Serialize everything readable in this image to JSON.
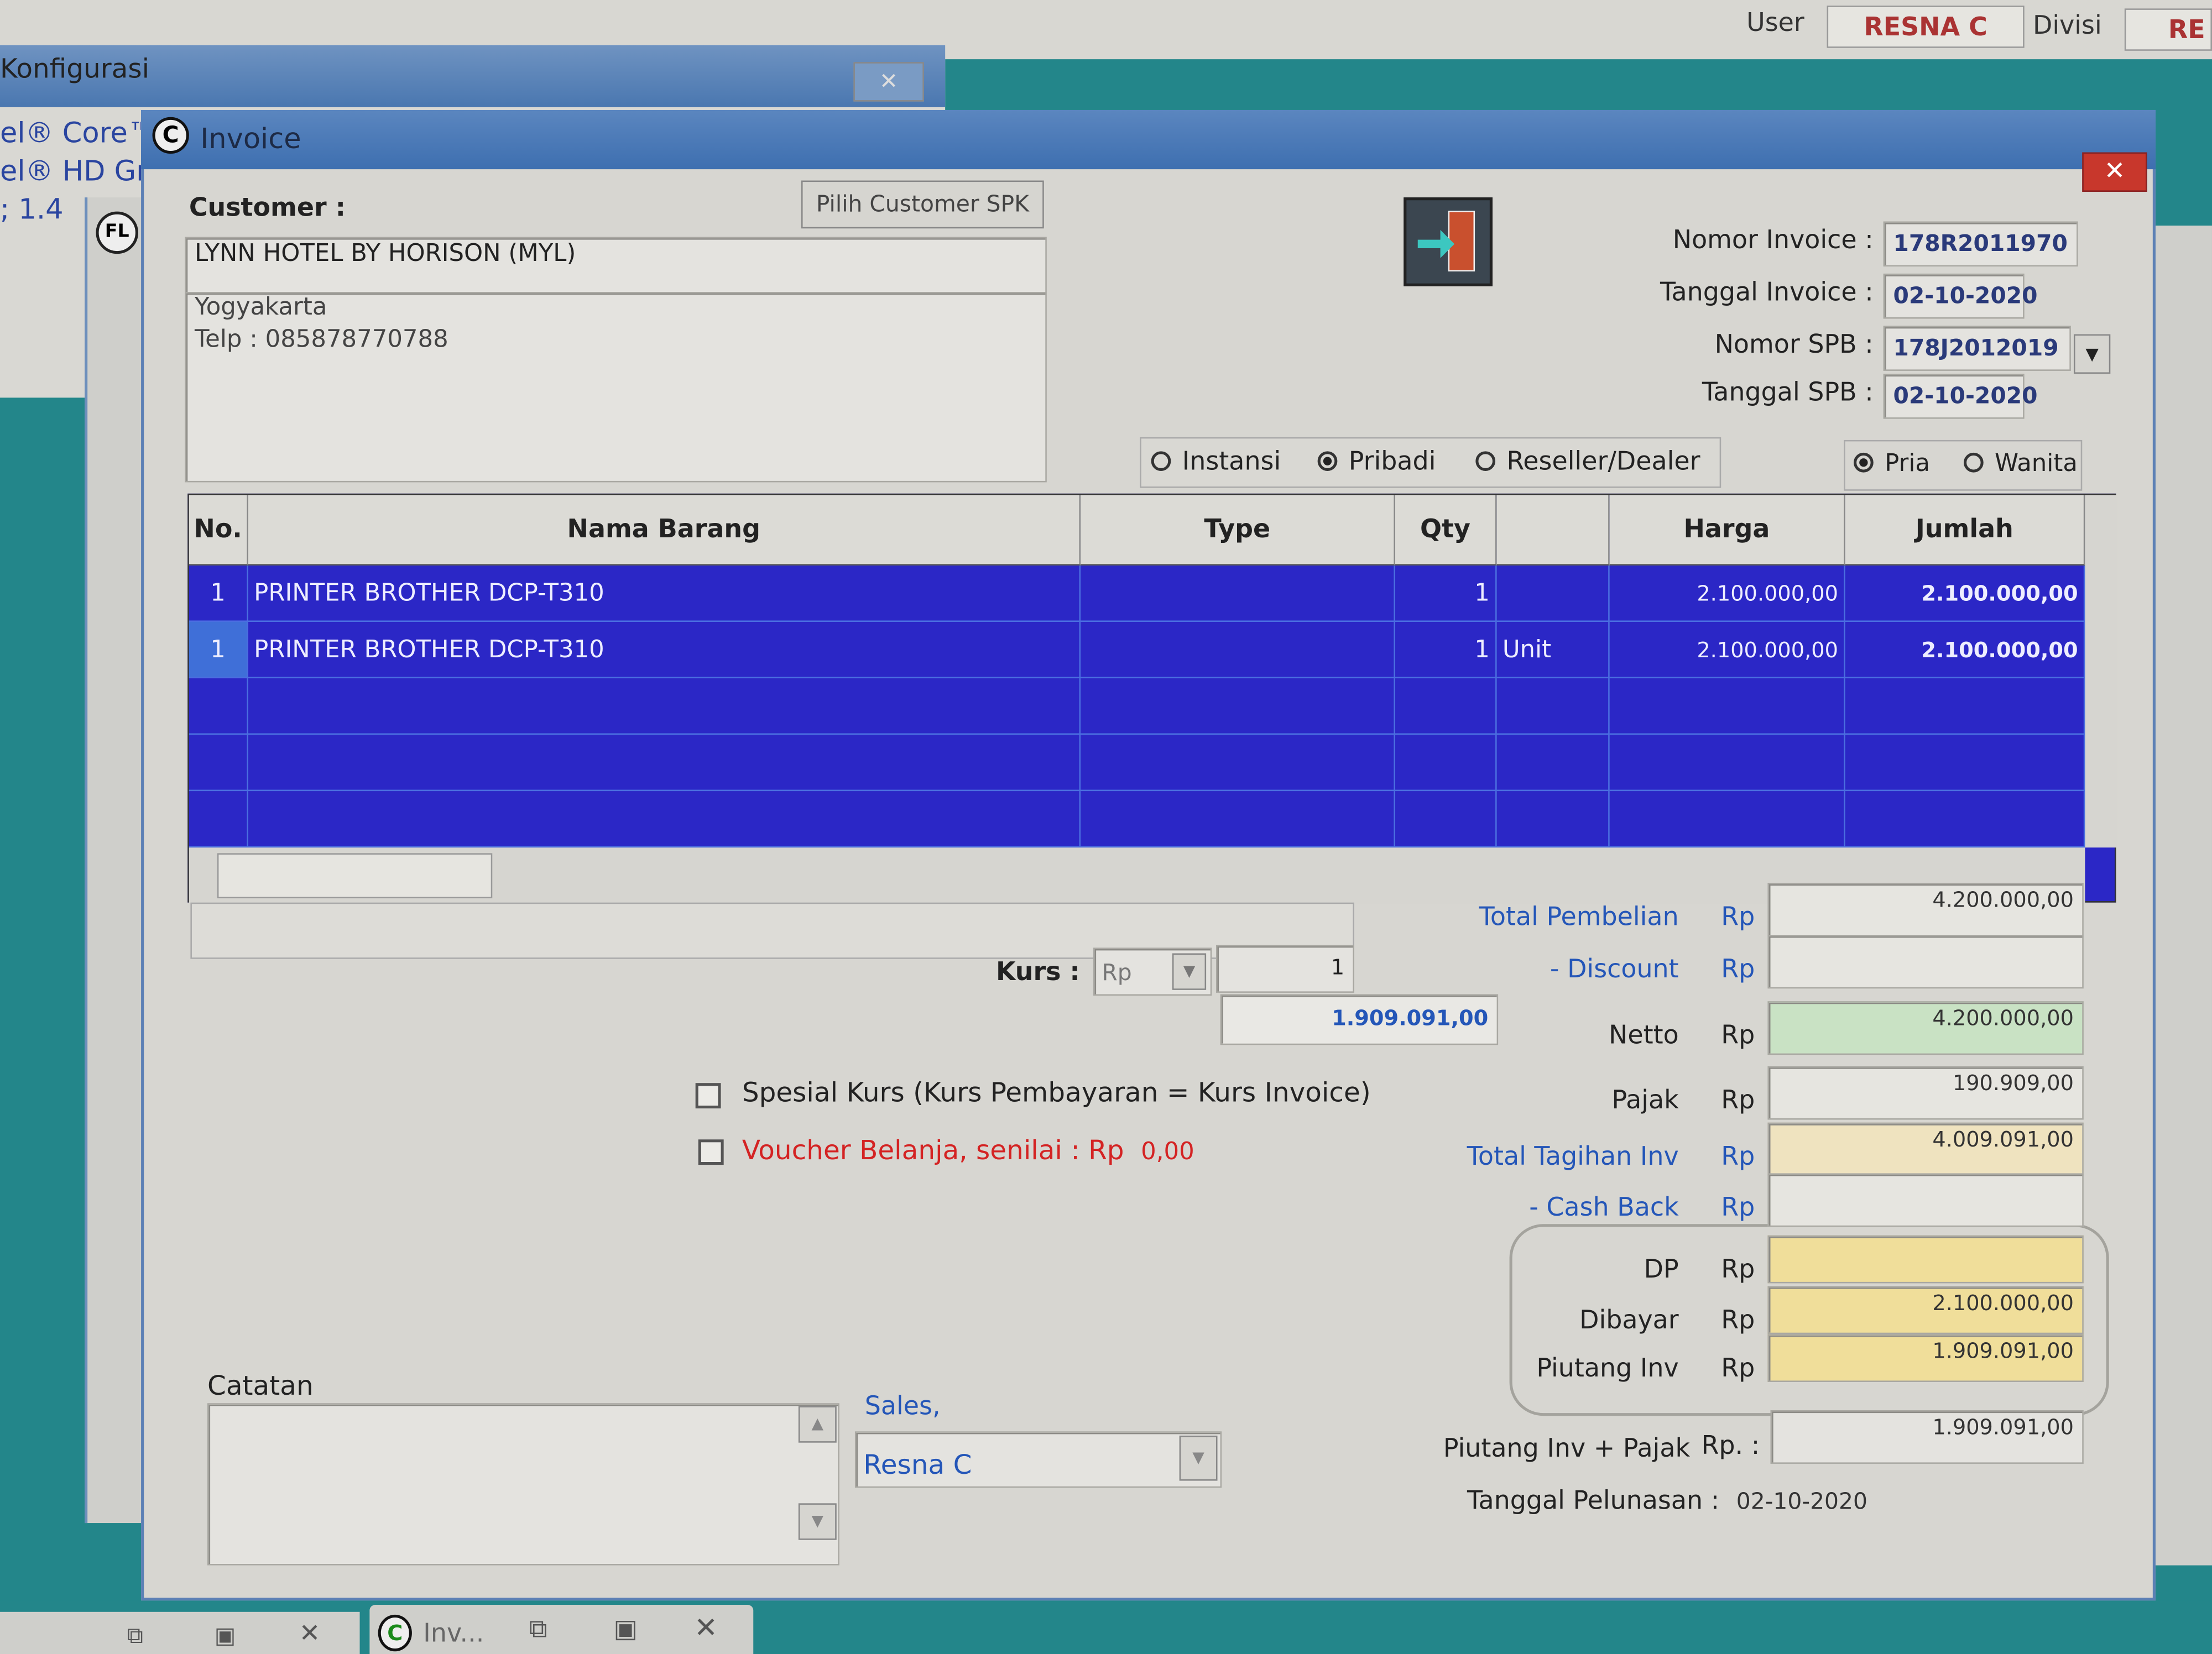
{
  "topbar": {
    "user_label": "User",
    "user_value": "RESNA C",
    "divisi_label": "Divisi",
    "divisi_value": "RE"
  },
  "bg_window": {
    "title": "Konfigurasi",
    "lines": [
      "el® Core™",
      "el® HD Gr",
      "; 1.4"
    ]
  },
  "window": {
    "title": "Invoice",
    "icon": "app-c-icon"
  },
  "customer": {
    "label": "Customer :",
    "pick_button": "Pilih Customer SPK",
    "name": "LYNN HOTEL BY HORISON (MYL)",
    "address_line1": "Yogyakarta",
    "address_line2": "Telp : 085878770788"
  },
  "exit_icon": "door-exit-icon",
  "invoice_fields": [
    {
      "label": "Nomor Invoice :",
      "value": "178R2011970"
    },
    {
      "label": "Tanggal Invoice :",
      "value": "02-10-2020"
    },
    {
      "label": "Nomor SPB :",
      "value": "178J2012019"
    },
    {
      "label": "Tanggal SPB :",
      "value": "02-10-2020"
    }
  ],
  "customer_type": {
    "options": [
      "Instansi",
      "Pribadi",
      "Reseller/Dealer"
    ],
    "selected": "Pribadi"
  },
  "gender": {
    "options": [
      "Pria",
      "Wanita"
    ],
    "selected": "Pria"
  },
  "table": {
    "headers": [
      "No.",
      "Nama Barang",
      "Type",
      "Qty",
      "",
      "Harga",
      "Jumlah"
    ],
    "rows": [
      [
        "1",
        "PRINTER BROTHER DCP-T310",
        "",
        "1",
        "",
        "2.100.000,00",
        "2.100.000,00"
      ],
      [
        "1",
        "PRINTER BROTHER DCP-T310",
        "",
        "1",
        "Unit",
        "2.100.000,00",
        "2.100.000,00"
      ]
    ]
  },
  "kurs": {
    "label": "Kurs :",
    "currency": "Rp",
    "rate": "1",
    "converted": "1.909.091,00"
  },
  "options": {
    "spesial_kurs": "Spesial Kurs  (Kurs Pembayaran = Kurs Invoice)",
    "voucher": "Voucher Belanja, senilai  : Rp",
    "voucher_value": "0,00"
  },
  "totals": [
    {
      "label": "Total Pembelian",
      "cur": "Rp",
      "value": "4.200.000,00"
    },
    {
      "label": "- Discount",
      "cur": "Rp",
      "value": ""
    },
    {
      "label": "Netto",
      "cur": "Rp",
      "value": "4.200.000,00"
    },
    {
      "label": "Pajak",
      "cur": "Rp",
      "value": "190.909,00"
    },
    {
      "label": "Total Tagihan Inv",
      "cur": "Rp",
      "value": "4.009.091,00"
    },
    {
      "label": "- Cash Back",
      "cur": "Rp",
      "value": ""
    },
    {
      "label": "DP",
      "cur": "Rp",
      "value": ""
    },
    {
      "label": "Dibayar",
      "cur": "Rp",
      "value": "2.100.000,00"
    },
    {
      "label": "Piutang Inv",
      "cur": "Rp",
      "value": "1.909.091,00"
    }
  ],
  "piutang_pajak": {
    "label": "Piutang Inv + Pajak",
    "cur": "Rp. :",
    "value": "1.909.091,00"
  },
  "pelunasan": {
    "label": "Tanggal Pelunasan :",
    "value": "02-10-2020"
  },
  "catatan": {
    "label": "Catatan",
    "value": ""
  },
  "sales": {
    "label": "Sales,",
    "value": "Resna C"
  },
  "colors": {
    "grid_bg": "#2b27c6",
    "title_bar": "#3e6fb0",
    "close_red": "#c8372c",
    "netto_bg": "#c9e2c4",
    "tagihan_bg": "#efe3bf",
    "dp_bg": "#f0de9a"
  },
  "taskbar": {
    "task_label": "Inv..."
  }
}
